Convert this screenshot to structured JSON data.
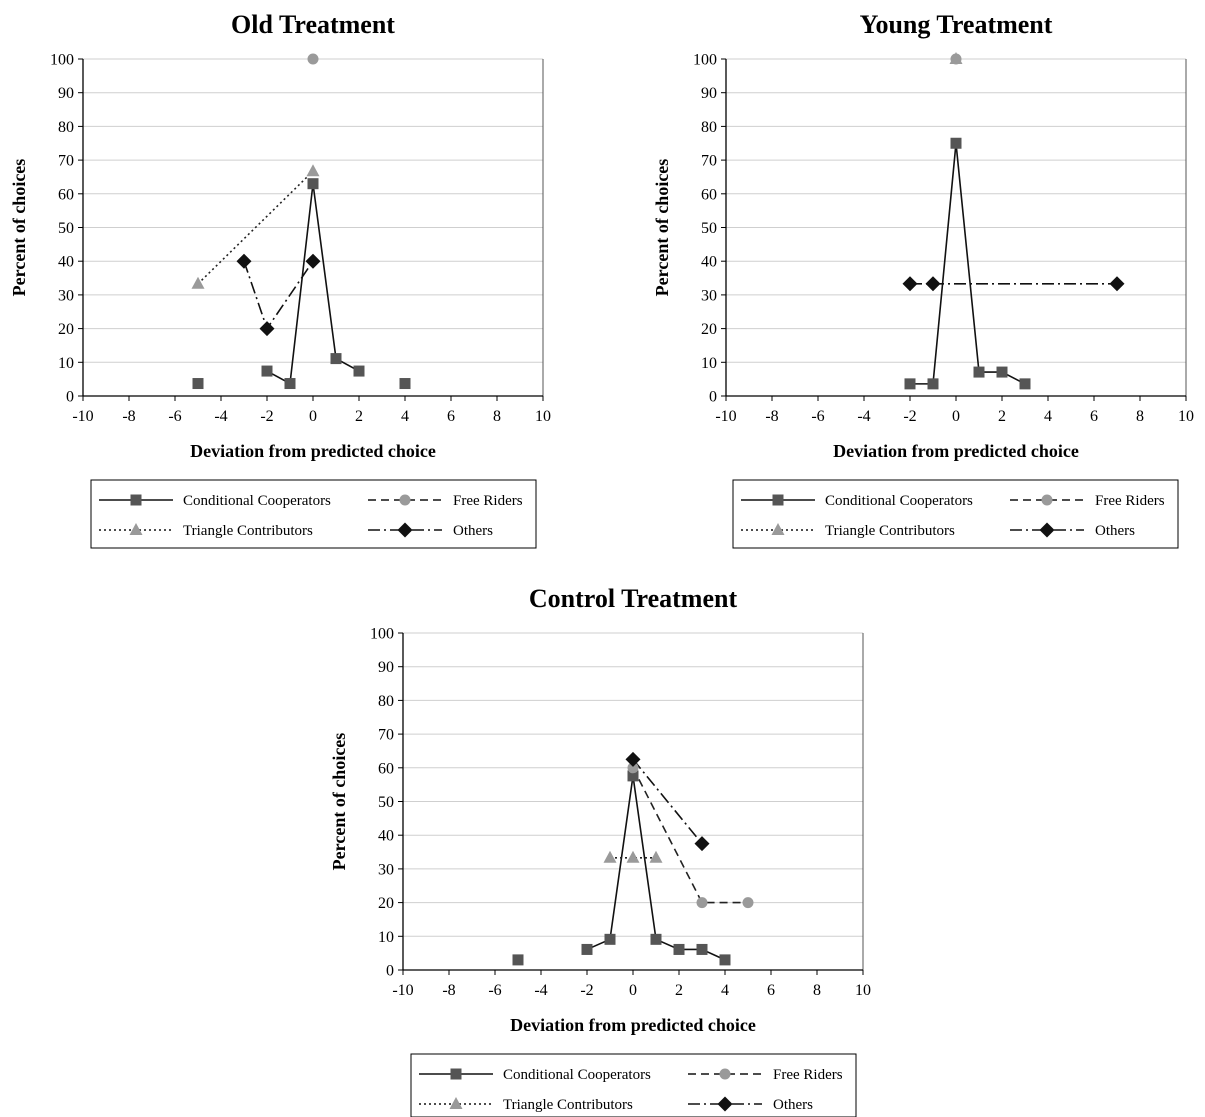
{
  "colors": {
    "dark": "#555555",
    "light": "#9a9a9a",
    "black": "#111111",
    "grid": "#cfcfcf"
  },
  "legend": {
    "conditional": "Conditional Cooperators",
    "free": "Free Riders",
    "triangle": "Triangle Contributors",
    "others": "Others"
  },
  "chart_data": [
    {
      "type": "line",
      "title": "Old Treatment",
      "xlabel": "Deviation from predicted choice",
      "ylabel": "Percent of choices",
      "xlim": [
        -10,
        10
      ],
      "ylim": [
        0,
        100
      ],
      "xticks": [
        -10,
        -8,
        -6,
        -4,
        -2,
        0,
        2,
        4,
        6,
        8,
        10
      ],
      "yticks": [
        0,
        10,
        20,
        30,
        40,
        50,
        60,
        70,
        80,
        90,
        100
      ],
      "grid": true,
      "legend_position": "bottom",
      "series": [
        {
          "name": "Conditional Cooperators",
          "marker": "square",
          "style": "solid",
          "color": "#555555",
          "points": [
            [
              -5,
              3.7
            ],
            [
              -2,
              7.4
            ],
            [
              -1,
              3.7
            ],
            [
              0,
              63
            ],
            [
              1,
              11.1
            ],
            [
              2,
              7.4
            ],
            [
              4,
              3.7
            ]
          ],
          "segments": [
            [
              1,
              5
            ]
          ]
        },
        {
          "name": "Free Riders",
          "marker": "circle",
          "style": "dashed",
          "color": "#9a9a9a",
          "points": [
            [
              0,
              100
            ]
          ],
          "segments": []
        },
        {
          "name": "Triangle Contributors",
          "marker": "triangle",
          "style": "dotted",
          "color": "#9a9a9a",
          "points": [
            [
              -5,
              33.3
            ],
            [
              0,
              66.7
            ]
          ],
          "segments": [
            [
              0,
              1
            ]
          ]
        },
        {
          "name": "Others",
          "marker": "diamond",
          "style": "dashdot",
          "color": "#111111",
          "points": [
            [
              -3,
              40
            ],
            [
              -2,
              20
            ],
            [
              0,
              40
            ]
          ],
          "segments": [
            [
              0,
              2
            ]
          ]
        }
      ]
    },
    {
      "type": "line",
      "title": "Young Treatment",
      "xlabel": "Deviation from predicted choice",
      "ylabel": "Percent of choices",
      "xlim": [
        -10,
        10
      ],
      "ylim": [
        0,
        100
      ],
      "xticks": [
        -10,
        -8,
        -6,
        -4,
        -2,
        0,
        2,
        4,
        6,
        8,
        10
      ],
      "yticks": [
        0,
        10,
        20,
        30,
        40,
        50,
        60,
        70,
        80,
        90,
        100
      ],
      "grid": true,
      "legend_position": "bottom",
      "series": [
        {
          "name": "Conditional Cooperators",
          "marker": "square",
          "style": "solid",
          "color": "#555555",
          "points": [
            [
              -2,
              3.6
            ],
            [
              -1,
              3.6
            ],
            [
              0,
              75
            ],
            [
              1,
              7.1
            ],
            [
              2,
              7.1
            ],
            [
              3,
              3.6
            ]
          ],
          "segments": [
            [
              0,
              5
            ]
          ]
        },
        {
          "name": "Free Riders",
          "marker": "circle",
          "style": "dashed",
          "color": "#9a9a9a",
          "points": [
            [
              0,
              100
            ]
          ],
          "segments": []
        },
        {
          "name": "Triangle Contributors",
          "marker": "triangle",
          "style": "dotted",
          "color": "#9a9a9a",
          "points": [
            [
              0,
              100
            ]
          ],
          "segments": []
        },
        {
          "name": "Others",
          "marker": "diamond",
          "style": "dashdot",
          "color": "#111111",
          "points": [
            [
              -2,
              33.3
            ],
            [
              -1,
              33.3
            ],
            [
              7,
              33.3
            ]
          ],
          "segments": [
            [
              0,
              2
            ]
          ]
        }
      ]
    },
    {
      "type": "line",
      "title": "Control Treatment",
      "xlabel": "Deviation from predicted choice",
      "ylabel": "Percent of choices",
      "xlim": [
        -10,
        10
      ],
      "ylim": [
        0,
        100
      ],
      "xticks": [
        -10,
        -8,
        -6,
        -4,
        -2,
        0,
        2,
        4,
        6,
        8,
        10
      ],
      "yticks": [
        0,
        10,
        20,
        30,
        40,
        50,
        60,
        70,
        80,
        90,
        100
      ],
      "grid": true,
      "legend_position": "bottom",
      "series": [
        {
          "name": "Conditional Cooperators",
          "marker": "square",
          "style": "solid",
          "color": "#555555",
          "points": [
            [
              -5,
              3
            ],
            [
              -2,
              6.1
            ],
            [
              -1,
              9.1
            ],
            [
              0,
              57.6
            ],
            [
              1,
              9.1
            ],
            [
              2,
              6.1
            ],
            [
              3,
              6.1
            ],
            [
              4,
              3
            ]
          ],
          "segments": [
            [
              1,
              7
            ]
          ]
        },
        {
          "name": "Free Riders",
          "marker": "circle",
          "style": "dashed",
          "color": "#9a9a9a",
          "points": [
            [
              0,
              60
            ],
            [
              3,
              20
            ],
            [
              5,
              20
            ]
          ],
          "segments": [
            [
              0,
              2
            ]
          ]
        },
        {
          "name": "Triangle Contributors",
          "marker": "triangle",
          "style": "dotted",
          "color": "#9a9a9a",
          "points": [
            [
              -1,
              33.3
            ],
            [
              0,
              33.3
            ],
            [
              1,
              33.3
            ]
          ],
          "segments": [
            [
              0,
              2
            ]
          ]
        },
        {
          "name": "Others",
          "marker": "diamond",
          "style": "dashdot",
          "color": "#111111",
          "points": [
            [
              0,
              62.5
            ],
            [
              3,
              37.5
            ]
          ],
          "segments": [
            [
              0,
              1
            ]
          ]
        }
      ]
    }
  ]
}
